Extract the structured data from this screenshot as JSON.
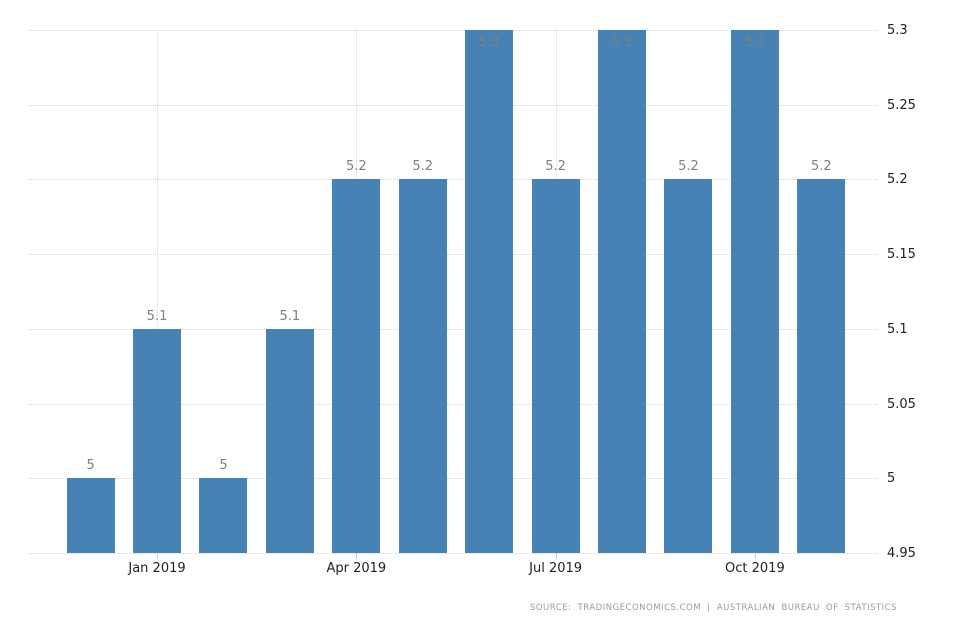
{
  "chart_data": {
    "type": "bar",
    "title": "",
    "xlabel": "",
    "ylabel": "",
    "categories": [
      "",
      "Jan 2019",
      "",
      "",
      "Apr 2019",
      "",
      "",
      "Jul 2019",
      "",
      "",
      "Oct 2019",
      ""
    ],
    "values": [
      5,
      5.1,
      5,
      5.1,
      5.2,
      5.2,
      5.3,
      5.2,
      5.3,
      5.2,
      5.3,
      5.2
    ],
    "bar_labels": [
      "5",
      "5.1",
      "5",
      "5.1",
      "5.2",
      "5.2",
      "5.3",
      "5.2",
      "5.3",
      "5.2",
      "5.3",
      "5.2"
    ],
    "x_tick_labels": [
      {
        "index": 1,
        "label": "Jan 2019"
      },
      {
        "index": 4,
        "label": "Apr 2019"
      },
      {
        "index": 7,
        "label": "Jul 2019"
      },
      {
        "index": 10,
        "label": "Oct 2019"
      }
    ],
    "y_tick_labels": [
      "5.3",
      "5.25",
      "5.2",
      "5.15",
      "5.1",
      "5.05",
      "5",
      "4.95"
    ],
    "ylim": [
      4.95,
      5.3
    ],
    "grid": true,
    "legend": "none",
    "colors": {
      "bar": "#4682b4",
      "grid": "#d6d6d6",
      "value_label": "#7f7f7f",
      "axis_label": "#222222",
      "tick": "#cccccc",
      "source": "#9a9a9a"
    }
  },
  "footer": {
    "source_text": "SOURCE: TRADINGECONOMICS.COM | AUSTRALIAN BUREAU OF STATISTICS"
  }
}
